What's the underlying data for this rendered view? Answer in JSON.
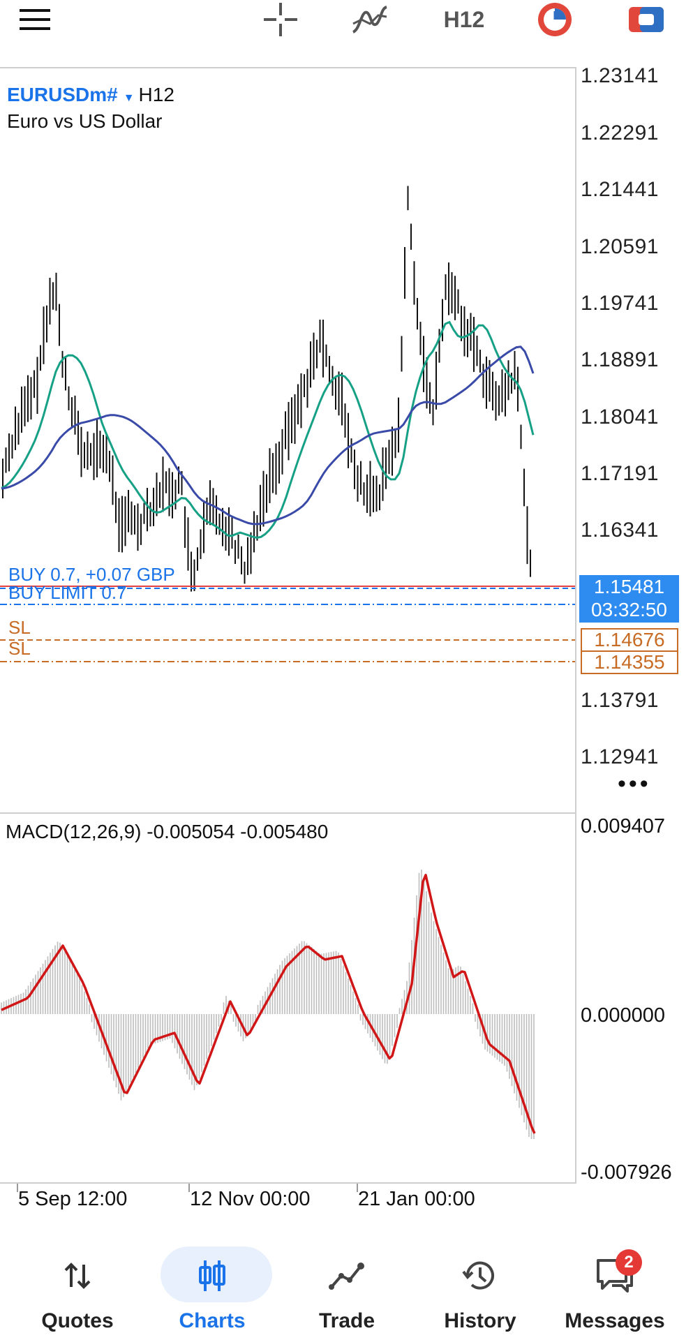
{
  "toolbar": {
    "timeframe": "H12",
    "menu_icon": "menu-icon",
    "crosshair_icon": "crosshair-icon",
    "indicators_icon": "indicators-icon",
    "objects_icon": "clock-icon",
    "trade_icon": "one-click-trade-icon"
  },
  "chart": {
    "symbol": "EURUSDm#",
    "timeframe": "H12",
    "description": "Euro vs US Dollar",
    "price_scale": [
      "1.23141",
      "1.22291",
      "1.21441",
      "1.20591",
      "1.19741",
      "1.18891",
      "1.18041",
      "1.17191",
      "1.16341",
      "1.13791",
      "1.12941"
    ],
    "current_price": "1.15481",
    "countdown": "03:32:50",
    "buy_position_label": "BUY 0.7, +0.07 GBP",
    "buy_limit_label": "BUY LIMIT 0.7",
    "sl_label_1": "SL",
    "sl_label_2": "SL",
    "sl_price_1": "1.14676",
    "sl_price_2": "1.14355",
    "colors": {
      "candles": "#111111",
      "fast_ma": "#16a085",
      "slow_ma": "#3a4aa8",
      "position_line": "#e04040",
      "order_line": "#1a73e8",
      "sl_line": "#c76b25"
    }
  },
  "macd": {
    "title": "MACD(12,26,9) -0.005054 -0.005480",
    "scale_top": "0.009407",
    "scale_zero": "0.000000",
    "scale_bottom": "-0.007926",
    "signal_color": "#d01616",
    "histogram_color": "#bdbdbd"
  },
  "time_axis": [
    "5 Sep 12:00",
    "12 Nov 00:00",
    "21 Jan 00:00"
  ],
  "nav": {
    "items": [
      {
        "label": "Quotes",
        "icon": "quotes-icon"
      },
      {
        "label": "Charts",
        "icon": "charts-icon"
      },
      {
        "label": "Trade",
        "icon": "trade-icon"
      },
      {
        "label": "History",
        "icon": "history-icon"
      },
      {
        "label": "Messages",
        "icon": "messages-icon"
      }
    ],
    "active": "Charts",
    "messages_badge": "2"
  }
}
